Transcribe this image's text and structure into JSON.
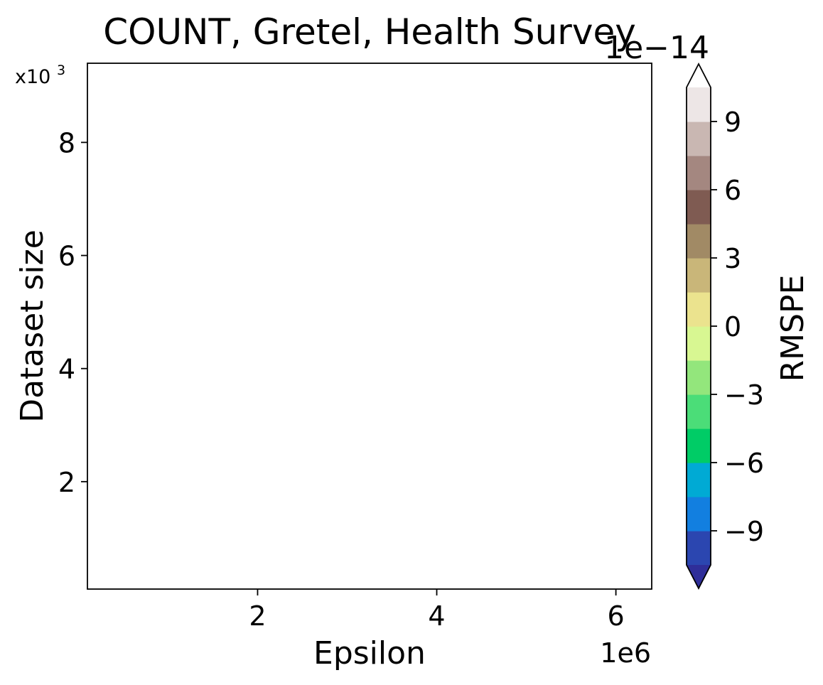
{
  "chart_data": {
    "type": "heatmap",
    "title": "COUNT, Gretel, Health Survey",
    "xlabel": "Epsilon",
    "ylabel": "Dataset size",
    "x_multiplier_label": "1e6",
    "y_multiplier_label": "x10",
    "y_multiplier_exponent": "3",
    "xlim": [
      0.1,
      6.4
    ],
    "ylim": [
      0.1,
      9.4
    ],
    "x_ticks": [
      {
        "value": 2,
        "label": "2"
      },
      {
        "value": 4,
        "label": "4"
      },
      {
        "value": 6,
        "label": "6"
      }
    ],
    "y_ticks": [
      {
        "value": 2,
        "label": "2"
      },
      {
        "value": 4,
        "label": "4"
      },
      {
        "value": 6,
        "label": "6"
      },
      {
        "value": 8,
        "label": "8"
      }
    ],
    "grid": false,
    "data_points": [],
    "colorbar": {
      "label": "RMSPE",
      "multiplier_label": "1e−14",
      "extend": "both",
      "range": [
        -10.5,
        10.5
      ],
      "levels": [
        -10.5,
        -9.0,
        -7.5,
        -6.0,
        -4.5,
        -3.0,
        -1.5,
        0.0,
        1.5,
        3.0,
        4.5,
        6.0,
        7.5,
        9.0,
        10.5
      ],
      "colors": [
        "#2b46b0",
        "#127fe0",
        "#00aad4",
        "#00cc66",
        "#4bdd78",
        "#93e67c",
        "#d8f792",
        "#ebe38e",
        "#c9b679",
        "#a18a65",
        "#7f5b52",
        "#a48780",
        "#c9b7b2",
        "#ede6e6"
      ],
      "under_color": "#2f2e99",
      "over_color": "#ffffff",
      "ticks": [
        {
          "value": -9,
          "label": "−9"
        },
        {
          "value": -6,
          "label": "−6"
        },
        {
          "value": -3,
          "label": "−3"
        },
        {
          "value": 0,
          "label": "0"
        },
        {
          "value": 3,
          "label": "3"
        },
        {
          "value": 6,
          "label": "6"
        },
        {
          "value": 9,
          "label": "9"
        }
      ]
    }
  }
}
